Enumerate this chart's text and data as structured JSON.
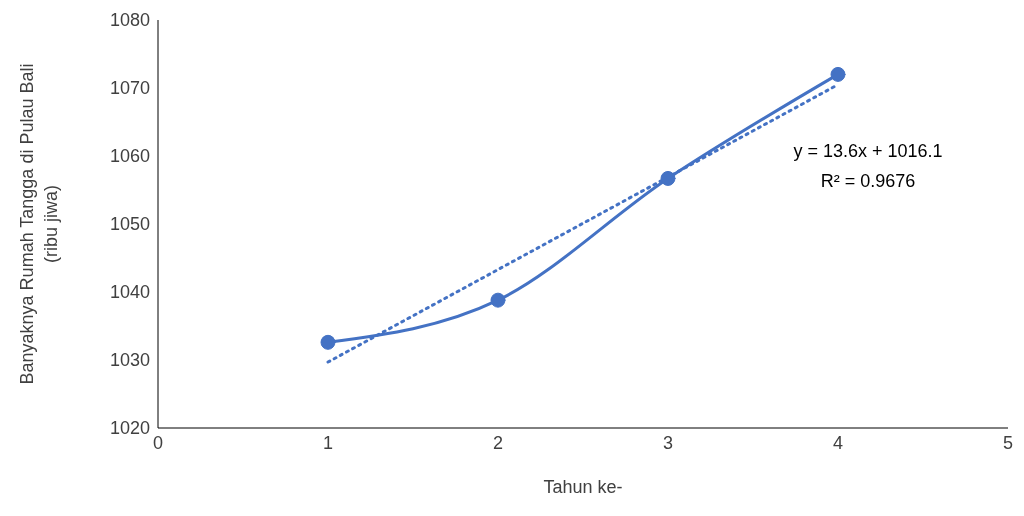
{
  "chart_data": {
    "type": "line",
    "xlabel": "Tahun ke-",
    "ylabel": "Banyaknya Rumah Tangga di Pulau Bali\n(ribu jiwa)",
    "x": [
      1,
      2,
      3,
      4
    ],
    "series": [
      {
        "color": "#4472c4",
        "values": [
          1032.6,
          1038.8,
          1056.7,
          1072.0
        ],
        "marker": "circle",
        "line_style": "solid"
      },
      {
        "type": "line",
        "color": "#4472c4",
        "x": [
          1,
          4
        ],
        "values": [
          1029.7,
          1070.5
        ],
        "marker": "none",
        "line_style": "dotted"
      }
    ],
    "annotations": [
      "y = 13.6x + 1016.1",
      "R² = 0.9676"
    ],
    "xlim": [
      0,
      5
    ],
    "xticks": [
      0,
      1,
      2,
      3,
      4,
      5
    ],
    "ylim": [
      1020,
      1080
    ],
    "yticks": [
      1020,
      1030,
      1040,
      1050,
      1060,
      1070,
      1080
    ]
  }
}
